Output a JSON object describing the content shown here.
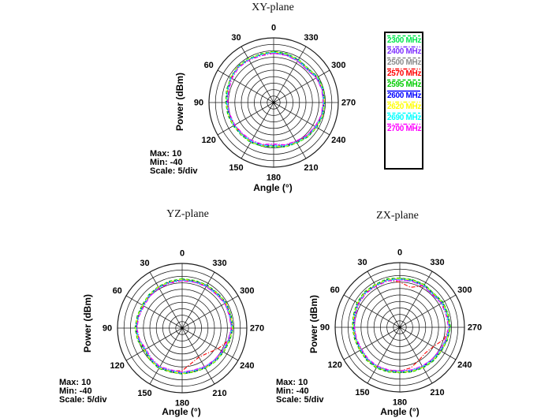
{
  "figure": {
    "background": "#ffffff"
  },
  "scale_info": [
    "Max: 10",
    "Min: -40",
    "Scale: 5/div"
  ],
  "legend": {
    "position": "top-right",
    "border_color": "#000000"
  },
  "chart_data": [
    {
      "type": "line",
      "coordinate_system": "polar",
      "title": "XY-plane",
      "xlabel": "Angle  (°)",
      "ylabel": "Power  (dBm)",
      "r_unit": "dBm",
      "rlim": [
        -40,
        10
      ],
      "rings": 10,
      "ring_step_db": 5,
      "angle_direction": "ccw",
      "zero_position": "top",
      "angle_ticks_deg": [
        0,
        30,
        60,
        90,
        120,
        150,
        180,
        210,
        240,
        270,
        300,
        330
      ],
      "angles_deg": [
        0,
        15,
        30,
        45,
        60,
        75,
        90,
        105,
        120,
        135,
        150,
        165,
        180,
        195,
        210,
        225,
        240,
        255,
        270,
        285,
        300,
        315,
        330,
        345
      ],
      "series": [
        {
          "name": "2300 MHz",
          "color": "#00e64d",
          "line_style": "dash",
          "power_dbm": [
            -0.3,
            -1.2,
            -0.8,
            -0.5,
            -1.8,
            -2.2,
            -3.0,
            -3.2,
            -3.8,
            -4.6,
            -4.2,
            -5.0,
            -5.6,
            -4.4,
            -3.8,
            -2.4,
            -1.4,
            -0.4,
            -0.6,
            -0.2,
            -0.4,
            -2.4,
            -1.4,
            -0.8
          ]
        },
        {
          "name": "2400 MHz",
          "color": "#7f30ff",
          "line_style": "dashdot",
          "power_dbm": [
            -1.8,
            -2.4,
            -2.0,
            -1.6,
            -2.6,
            -3.8,
            -4.4,
            -4.6,
            -5.2,
            -5.8,
            -6.0,
            -6.2,
            -7.6,
            -6.0,
            -5.4,
            -3.8,
            -2.8,
            -1.8,
            -1.6,
            -1.2,
            -1.8,
            -3.8,
            -2.8,
            -2.2
          ]
        },
        {
          "name": "2500 MHz",
          "color": "#8c8c8c",
          "line_style": "dash",
          "power_dbm": [
            -0.8,
            -1.0,
            -1.4,
            -0.8,
            -1.2,
            -2.6,
            -3.2,
            -3.6,
            -4.2,
            -4.8,
            -4.6,
            -5.2,
            -6.0,
            -4.8,
            -4.0,
            -2.6,
            -1.8,
            -0.8,
            -0.8,
            -0.4,
            -0.8,
            -2.6,
            -1.8,
            -1.2
          ]
        },
        {
          "name": "2570 MHz",
          "color": "#ff0000",
          "line_style": "dashdot",
          "power_dbm": [
            -1.4,
            -1.8,
            -1.6,
            -1.2,
            -2.0,
            -3.4,
            -3.8,
            -4.2,
            -5.0,
            -5.4,
            -5.2,
            -5.8,
            -6.8,
            -5.4,
            -4.8,
            -3.4,
            -2.2,
            -1.4,
            -1.2,
            -0.8,
            -1.4,
            -3.2,
            -2.2,
            -1.8
          ]
        },
        {
          "name": "2595 MHz",
          "color": "#00cc00",
          "line_style": "dash",
          "power_dbm": [
            -0.6,
            -1.0,
            -1.2,
            -0.6,
            -1.4,
            -2.4,
            -3.0,
            -3.4,
            -4.0,
            -4.4,
            -4.6,
            -5.0,
            -5.8,
            -4.6,
            -4.0,
            -2.4,
            -1.6,
            -0.6,
            -0.6,
            0.0,
            -0.6,
            -2.6,
            -1.6,
            -1.0
          ]
        },
        {
          "name": "2600 MHz",
          "color": "#0000ff",
          "line_style": "solid",
          "power_dbm": [
            -1.0,
            -1.6,
            -1.4,
            -1.0,
            -1.6,
            -3.0,
            -3.6,
            -4.0,
            -4.4,
            -5.0,
            -5.0,
            -5.6,
            -6.4,
            -5.0,
            -4.4,
            -3.0,
            -2.0,
            -1.0,
            -1.0,
            -0.6,
            -1.0,
            -3.0,
            -2.0,
            -1.6
          ]
        },
        {
          "name": "2620 MHz",
          "color": "#ffff00",
          "line_style": "dashdot",
          "power_dbm": [
            -0.8,
            -1.4,
            -1.2,
            -0.8,
            -1.4,
            -2.8,
            -3.4,
            -3.8,
            -4.2,
            -4.8,
            -4.8,
            -5.4,
            -6.2,
            -4.8,
            -4.2,
            -2.8,
            -1.8,
            -0.8,
            -0.8,
            -0.4,
            -0.8,
            -2.8,
            -1.8,
            -1.4
          ]
        },
        {
          "name": "2690 MHz",
          "color": "#00ffff",
          "line_style": "dash",
          "power_dbm": [
            -1.2,
            -1.8,
            -1.6,
            -1.4,
            -1.8,
            -3.2,
            -3.8,
            -4.4,
            -4.8,
            -5.2,
            -5.4,
            -5.8,
            -6.6,
            -5.4,
            -4.6,
            -3.2,
            -2.4,
            -1.2,
            -1.4,
            -0.8,
            -1.2,
            -3.4,
            -2.4,
            -1.8
          ]
        },
        {
          "name": "2700 MHz",
          "color": "#ff00ff",
          "line_style": "dashdot",
          "power_dbm": [
            -2.0,
            -2.6,
            -2.2,
            -1.8,
            -2.8,
            -4.0,
            -4.6,
            -5.0,
            -5.4,
            -6.0,
            -6.2,
            -6.6,
            -8.0,
            -6.2,
            -5.6,
            -4.0,
            -3.0,
            -2.0,
            -1.8,
            -1.4,
            -2.0,
            -4.0,
            -3.0,
            -2.4
          ]
        }
      ]
    },
    {
      "type": "line",
      "coordinate_system": "polar",
      "title": "YZ-plane",
      "xlabel": "Angle  (°)",
      "ylabel": "Power  (dBm)",
      "r_unit": "dBm",
      "rlim": [
        -40,
        10
      ],
      "rings": 10,
      "ring_step_db": 5,
      "angle_direction": "ccw",
      "zero_position": "top",
      "angle_ticks_deg": [
        0,
        30,
        60,
        90,
        120,
        150,
        180,
        210,
        240,
        270,
        300,
        330
      ],
      "angles_deg": [
        0,
        15,
        30,
        45,
        60,
        75,
        90,
        105,
        120,
        135,
        150,
        165,
        180,
        195,
        210,
        225,
        240,
        255,
        270,
        285,
        300,
        315,
        330,
        345
      ],
      "series": [
        {
          "name": "2300 MHz",
          "color": "#00e64d",
          "line_style": "dash",
          "power_dbm": [
            -2.0,
            -2.6,
            -3.0,
            -3.4,
            -4.4,
            -4.0,
            -3.4,
            -4.4,
            -5.8,
            -5.0,
            -3.8,
            -5.0,
            -4.4,
            -5.0,
            -4.0,
            -3.4,
            -3.0,
            -2.0,
            -0.4,
            -1.0,
            -0.6,
            -1.4,
            -1.6,
            -2.0
          ]
        },
        {
          "name": "2400 MHz",
          "color": "#7f30ff",
          "line_style": "dashdot",
          "power_dbm": [
            -3.2,
            -3.8,
            -4.2,
            -4.8,
            -5.8,
            -5.2,
            -4.8,
            -5.8,
            -7.4,
            -6.2,
            -5.4,
            -6.4,
            -5.8,
            -6.2,
            -5.4,
            -4.8,
            -4.2,
            -3.2,
            -1.8,
            -2.2,
            -1.8,
            -2.8,
            -2.8,
            -3.2
          ]
        },
        {
          "name": "2500 MHz",
          "color": "#8c8c8c",
          "line_style": "dash",
          "power_dbm": [
            -2.2,
            -2.8,
            -3.2,
            -3.8,
            -4.6,
            -4.2,
            -3.8,
            -4.6,
            -6.2,
            -5.2,
            -4.2,
            -5.2,
            -4.8,
            -5.2,
            -4.2,
            -3.8,
            -3.2,
            -2.2,
            -0.8,
            -1.2,
            -0.8,
            -1.8,
            -1.8,
            -2.2
          ]
        },
        {
          "name": "2570 MHz",
          "color": "#ff0000",
          "line_style": "dashdot",
          "power_dbm": [
            -2.8,
            -3.4,
            -3.8,
            -4.2,
            -5.4,
            -4.8,
            -4.4,
            -5.4,
            -6.8,
            -5.8,
            -4.8,
            -5.8,
            -7.0,
            -12.0,
            -14.0,
            -12.5,
            -8.0,
            -3.0,
            -1.4,
            -1.8,
            -1.4,
            -2.4,
            -2.4,
            -2.8
          ]
        },
        {
          "name": "2595 MHz",
          "color": "#00cc00",
          "line_style": "dash",
          "power_dbm": [
            -1.8,
            -2.4,
            -3.0,
            -3.6,
            -4.2,
            -4.0,
            -3.6,
            -4.2,
            -6.0,
            -5.0,
            -4.0,
            -4.8,
            -4.6,
            -4.8,
            -4.2,
            -3.6,
            -2.8,
            -1.8,
            -0.6,
            -0.8,
            -0.6,
            -1.6,
            -1.4,
            -1.8
          ]
        },
        {
          "name": "2600 MHz",
          "color": "#0000ff",
          "line_style": "solid",
          "power_dbm": [
            -2.5,
            -3.0,
            -3.5,
            -4.0,
            -5.0,
            -4.5,
            -4.0,
            -5.0,
            -6.5,
            -5.5,
            -4.5,
            -5.5,
            -5.0,
            -5.5,
            -4.5,
            -4.0,
            -3.5,
            -2.5,
            -1.0,
            -1.5,
            -1.0,
            -2.0,
            -2.0,
            -2.5
          ]
        },
        {
          "name": "2620 MHz",
          "color": "#ffff00",
          "line_style": "dashdot",
          "power_dbm": [
            -2.3,
            -2.9,
            -3.3,
            -3.9,
            -4.8,
            -4.4,
            -3.9,
            -4.8,
            -6.3,
            -5.3,
            -4.4,
            -5.3,
            -4.9,
            -5.3,
            -4.4,
            -3.9,
            -3.3,
            -2.3,
            -0.9,
            -1.3,
            -0.9,
            -1.9,
            -1.9,
            -2.3
          ]
        },
        {
          "name": "2690 MHz",
          "color": "#00ffff",
          "line_style": "dash",
          "power_dbm": [
            -2.9,
            -3.5,
            -3.9,
            -4.5,
            -5.4,
            -5.0,
            -4.5,
            -5.4,
            -7.0,
            -6.0,
            -5.0,
            -6.0,
            -5.4,
            -6.0,
            -5.0,
            -4.5,
            -3.9,
            -2.9,
            -1.5,
            -1.9,
            -1.5,
            -2.5,
            -2.5,
            -2.9
          ]
        },
        {
          "name": "2700 MHz",
          "color": "#ff00ff",
          "line_style": "dashdot",
          "power_dbm": [
            -3.4,
            -4.0,
            -4.4,
            -5.0,
            -6.0,
            -5.4,
            -5.0,
            -6.0,
            -7.6,
            -6.6,
            -5.6,
            -6.6,
            -6.0,
            -6.4,
            -5.6,
            -5.0,
            -4.4,
            -3.4,
            -2.0,
            -2.4,
            -2.0,
            -3.0,
            -3.0,
            -3.4
          ]
        }
      ]
    },
    {
      "type": "line",
      "coordinate_system": "polar",
      "title": "ZX-plane",
      "xlabel": "Angle  (°)",
      "ylabel": "Power  (dBm)",
      "r_unit": "dBm",
      "rlim": [
        -40,
        10
      ],
      "rings": 10,
      "ring_step_db": 5,
      "angle_direction": "ccw",
      "zero_position": "top",
      "angle_ticks_deg": [
        0,
        30,
        60,
        90,
        120,
        150,
        180,
        210,
        240,
        270,
        300,
        330
      ],
      "angles_deg": [
        0,
        15,
        30,
        45,
        60,
        75,
        90,
        105,
        120,
        135,
        150,
        165,
        180,
        195,
        210,
        225,
        240,
        255,
        270,
        285,
        300,
        315,
        330,
        345
      ],
      "series": [
        {
          "name": "2300 MHz",
          "color": "#00e64d",
          "line_style": "dash",
          "power_dbm": [
            -2.0,
            -1.4,
            -2.0,
            -1.4,
            -2.0,
            -3.0,
            -3.4,
            -4.0,
            -4.4,
            -4.0,
            -3.8,
            -4.4,
            -5.0,
            -4.4,
            -4.0,
            -3.4,
            -3.0,
            -2.0,
            -0.9,
            -1.4,
            -1.4,
            -3.0,
            -2.0,
            -2.0
          ]
        },
        {
          "name": "2400 MHz",
          "color": "#7f30ff",
          "line_style": "dashdot",
          "power_dbm": [
            -3.2,
            -2.8,
            -3.2,
            -2.8,
            -3.2,
            -4.2,
            -4.8,
            -5.2,
            -5.8,
            -5.2,
            -5.2,
            -5.8,
            -6.4,
            -5.8,
            -5.2,
            -4.8,
            -4.2,
            -3.2,
            -1.0,
            -1.6,
            -2.8,
            -4.2,
            -3.2,
            -3.2
          ]
        },
        {
          "name": "2500 MHz",
          "color": "#8c8c8c",
          "line_style": "dash",
          "power_dbm": [
            -2.2,
            -1.8,
            -2.2,
            -1.8,
            -2.2,
            -3.2,
            -3.8,
            -4.2,
            -4.8,
            -4.2,
            -4.2,
            -4.8,
            -5.2,
            -4.8,
            -4.2,
            -3.8,
            -3.2,
            -2.2,
            -1.2,
            -1.8,
            -1.8,
            -3.2,
            -2.2,
            -2.2
          ]
        },
        {
          "name": "2570 MHz",
          "color": "#ff0000",
          "line_style": "dashdot",
          "power_dbm": [
            -5.0,
            -2.4,
            -2.8,
            -2.4,
            -3.0,
            -3.8,
            -4.4,
            -4.8,
            -5.6,
            -4.8,
            -4.8,
            -5.6,
            -6.2,
            -7.5,
            -10.5,
            -12.0,
            -10.0,
            -4.5,
            -1.8,
            -2.4,
            -2.4,
            -3.8,
            -3.0,
            -8.0
          ]
        },
        {
          "name": "2595 MHz",
          "color": "#00cc00",
          "line_style": "dash",
          "power_dbm": [
            -1.8,
            -1.2,
            -1.8,
            -1.2,
            -1.8,
            -2.8,
            -3.2,
            -3.8,
            -4.2,
            -3.8,
            -3.6,
            -4.2,
            -4.8,
            -4.2,
            -3.8,
            -3.2,
            -2.8,
            -1.8,
            -0.7,
            -1.2,
            -1.2,
            -2.8,
            -1.8,
            -1.8
          ]
        },
        {
          "name": "2600 MHz",
          "color": "#0000ff",
          "line_style": "solid",
          "power_dbm": [
            -2.5,
            -2.0,
            -2.5,
            -2.0,
            -2.5,
            -3.5,
            -4.0,
            -4.5,
            -5.0,
            -4.5,
            -4.5,
            -5.0,
            -5.5,
            -5.0,
            -4.5,
            -4.0,
            -3.5,
            -2.5,
            -1.5,
            -2.0,
            -2.0,
            -3.5,
            -2.5,
            -2.5
          ]
        },
        {
          "name": "2620 MHz",
          "color": "#ffff00",
          "line_style": "dashdot",
          "power_dbm": [
            -2.3,
            -1.8,
            -2.3,
            -1.8,
            -2.3,
            -3.3,
            -3.8,
            -4.3,
            -4.8,
            -4.3,
            -4.3,
            -4.8,
            -5.3,
            -4.8,
            -4.3,
            -3.8,
            -3.3,
            -2.3,
            -1.3,
            -1.8,
            -1.8,
            -3.3,
            -2.3,
            -2.3
          ]
        },
        {
          "name": "2690 MHz",
          "color": "#00ffff",
          "line_style": "dash",
          "power_dbm": [
            -2.9,
            -2.4,
            -2.9,
            -2.4,
            -2.9,
            -3.9,
            -4.4,
            -4.9,
            -5.4,
            -4.9,
            -4.9,
            -5.4,
            -5.9,
            -5.4,
            -4.9,
            -4.4,
            -3.9,
            -2.9,
            -1.9,
            -2.4,
            -2.4,
            -3.9,
            -2.9,
            -2.9
          ]
        },
        {
          "name": "2700 MHz",
          "color": "#ff00ff",
          "line_style": "dashdot",
          "power_dbm": [
            -3.4,
            -3.0,
            -3.4,
            -3.0,
            -3.4,
            -4.4,
            -5.0,
            -5.4,
            -6.0,
            -5.4,
            -5.4,
            -6.0,
            -6.4,
            -6.0,
            -5.4,
            -5.0,
            -4.4,
            -3.4,
            -2.4,
            -3.0,
            -3.0,
            -4.4,
            -3.4,
            -3.4
          ]
        }
      ]
    }
  ]
}
